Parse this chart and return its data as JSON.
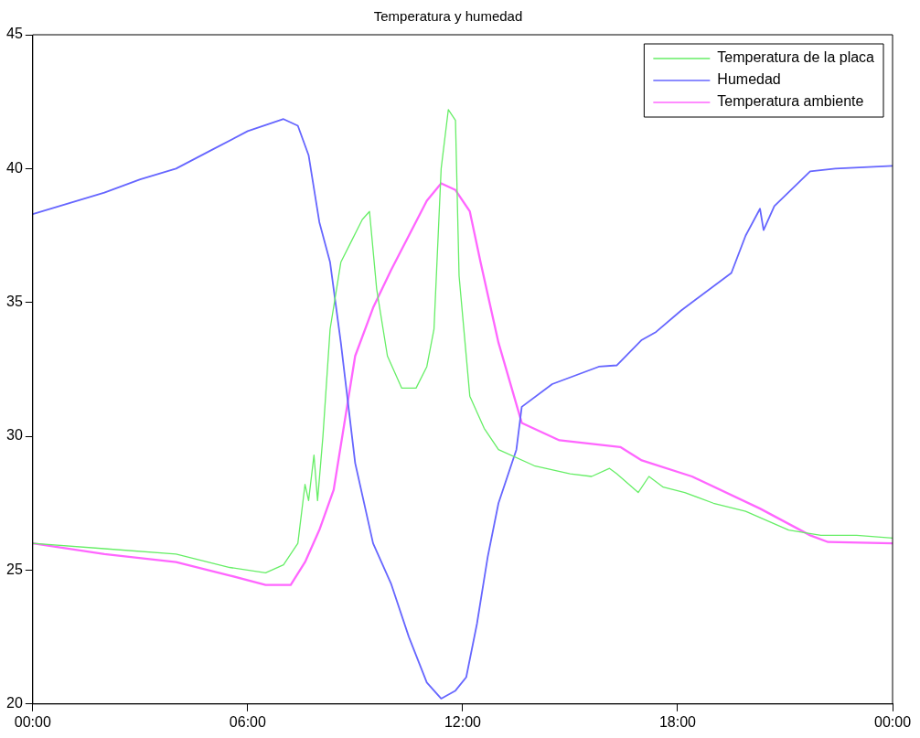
{
  "chart_data": {
    "type": "line",
    "title": "Temperatura y humedad",
    "xlim": [
      0,
      24
    ],
    "xticks": [
      {
        "value": 0,
        "label": "00:00"
      },
      {
        "value": 6,
        "label": "06:00"
      },
      {
        "value": 12,
        "label": "12:00"
      },
      {
        "value": 18,
        "label": "18:00"
      },
      {
        "value": 24,
        "label": "00:00"
      }
    ],
    "ylim": [
      20,
      45
    ],
    "yticks": [
      20,
      25,
      30,
      35,
      40,
      45
    ],
    "grid": false,
    "legend": "top right",
    "marker": "none",
    "line_style": "solid",
    "series": [
      {
        "name": "Temperatura de la placa",
        "color": "#66ee66",
        "x": [
          0,
          2,
          4,
          5.5,
          6.5,
          7,
          7.4,
          7.6,
          7.7,
          7.85,
          7.95,
          8.1,
          8.3,
          8.6,
          8.9,
          9.2,
          9.4,
          9.6,
          9.9,
          10.3,
          10.7,
          11,
          11.2,
          11.4,
          11.6,
          11.8,
          11.9,
          12.2,
          12.6,
          13,
          14,
          15,
          15.6,
          16.1,
          16.3,
          16.9,
          17.2,
          17.6,
          18.2,
          19,
          19.9,
          21.1,
          22,
          23,
          24
        ],
        "values": [
          26,
          25.8,
          25.6,
          25.1,
          24.9,
          25.2,
          26,
          28.2,
          27.6,
          29.3,
          27.6,
          30,
          34,
          36.5,
          37.3,
          38.1,
          38.4,
          35.5,
          33,
          31.8,
          31.8,
          32.6,
          34,
          40,
          42.2,
          41.8,
          36,
          31.5,
          30.3,
          29.5,
          28.9,
          28.6,
          28.5,
          28.8,
          28.6,
          27.9,
          28.5,
          28.1,
          27.9,
          27.5,
          27.2,
          26.5,
          26.3,
          26.3,
          26.2
        ]
      },
      {
        "name": "Humedad",
        "color": "#6666ff",
        "x": [
          0,
          1,
          2,
          3,
          4,
          5,
          6,
          7,
          7.4,
          7.7,
          8,
          8.3,
          8.6,
          9,
          9.5,
          10,
          10.5,
          11,
          11.4,
          11.8,
          12.1,
          12.4,
          12.7,
          13,
          13.5,
          13.65,
          14.5,
          15.8,
          16.3,
          17,
          17.4,
          18.1,
          19.5,
          19.9,
          20.3,
          20.4,
          20.7,
          21.7,
          22.4,
          24
        ],
        "values": [
          38.3,
          38.7,
          39.1,
          39.6,
          40,
          40.7,
          41.4,
          41.85,
          41.6,
          40.5,
          38,
          36.5,
          33.5,
          29,
          26,
          24.5,
          22.5,
          20.8,
          20.2,
          20.5,
          21,
          23,
          25.5,
          27.5,
          29.5,
          31.1,
          31.95,
          32.6,
          32.65,
          33.6,
          33.9,
          34.7,
          36.1,
          37.5,
          38.5,
          37.7,
          38.6,
          39.9,
          40,
          40.1
        ]
      },
      {
        "name": "Temperatura ambiente",
        "color": "#ff66ff",
        "x": [
          0,
          2,
          4,
          5.5,
          6.5,
          7.2,
          7.6,
          8,
          8.4,
          8.7,
          9,
          9.5,
          10,
          10.5,
          11,
          11.4,
          11.8,
          12.2,
          12.5,
          13,
          13.65,
          14.7,
          16.4,
          17,
          18.4,
          20.3,
          21.7,
          22.2,
          24
        ],
        "values": [
          26,
          25.6,
          25.3,
          24.8,
          24.45,
          24.45,
          25.3,
          26.5,
          28,
          30.5,
          33,
          34.8,
          36.2,
          37.5,
          38.8,
          39.45,
          39.2,
          38.4,
          36.5,
          33.5,
          30.5,
          29.85,
          29.6,
          29.1,
          28.5,
          27.3,
          26.3,
          26.05,
          26
        ]
      }
    ]
  }
}
